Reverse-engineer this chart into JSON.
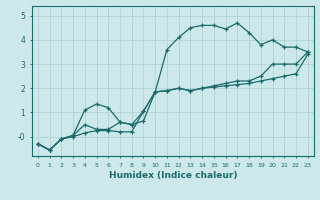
{
  "title": "",
  "xlabel": "Humidex (Indice chaleur)",
  "ylabel": "",
  "bg_color": "#cce8ea",
  "grid_color": "#aacfd2",
  "line_color": "#1a6b6b",
  "x_ticks": [
    0,
    1,
    2,
    3,
    4,
    5,
    6,
    7,
    8,
    9,
    10,
    11,
    12,
    13,
    14,
    15,
    16,
    17,
    18,
    19,
    20,
    21,
    22,
    23
  ],
  "y_ticks": [
    0,
    1,
    2,
    3,
    4,
    5
  ],
  "ylim": [
    -0.8,
    5.4
  ],
  "xlim": [
    -0.5,
    23.5
  ],
  "line1_y": [
    -0.3,
    -0.55,
    -0.1,
    0.0,
    0.15,
    0.25,
    0.25,
    0.2,
    0.2,
    1.05,
    1.85,
    3.6,
    4.1,
    4.5,
    4.6,
    4.6,
    4.45,
    4.7,
    4.3,
    3.8,
    4.0,
    3.7,
    3.7,
    3.5
  ],
  "line2_y": [
    -0.3,
    -0.55,
    -0.1,
    0.05,
    1.1,
    1.35,
    1.2,
    0.6,
    0.5,
    0.65,
    1.85,
    1.9,
    2.0,
    1.9,
    2.0,
    2.1,
    2.2,
    2.3,
    2.3,
    2.5,
    3.0,
    3.0,
    3.0,
    3.5
  ],
  "line3_y": [
    -0.3,
    -0.55,
    -0.1,
    0.05,
    0.5,
    0.3,
    0.3,
    0.6,
    0.5,
    1.05,
    1.85,
    1.9,
    2.0,
    1.9,
    2.0,
    2.05,
    2.1,
    2.15,
    2.2,
    2.3,
    2.4,
    2.5,
    2.6,
    3.4
  ]
}
